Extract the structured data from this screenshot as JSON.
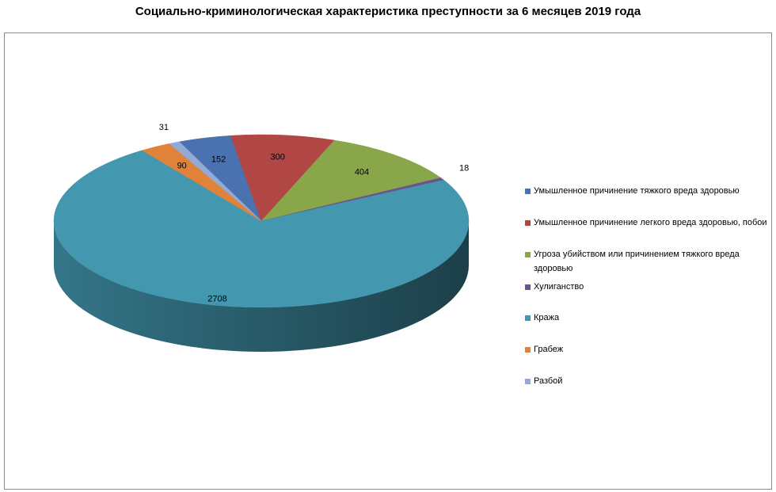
{
  "title": "Социально-криминологическая характеристика преступности за 6 месяцев 2019 года",
  "chart_data": {
    "type": "pie",
    "three_d": true,
    "legend_position": "right",
    "slices": [
      {
        "label": "Умышленное причинение тяжкого вреда здоровью",
        "value": 152,
        "color": "#4a72b0"
      },
      {
        "label": "Умышленное причинение легкого вреда здоровью, побои",
        "value": 300,
        "color": "#b04745"
      },
      {
        "label": "Угроза убийством или причинением тяжкого вреда здоровью",
        "value": 404,
        "color": "#8aa64b"
      },
      {
        "label": "Хулиганство",
        "value": 18,
        "color": "#6c5292"
      },
      {
        "label": "Кража",
        "value": 2708,
        "color": "#4397ae"
      },
      {
        "label": "Грабеж",
        "value": 90,
        "color": "#e0823a"
      },
      {
        "label": "Разбой",
        "value": 31,
        "color": "#92abd6"
      }
    ]
  }
}
